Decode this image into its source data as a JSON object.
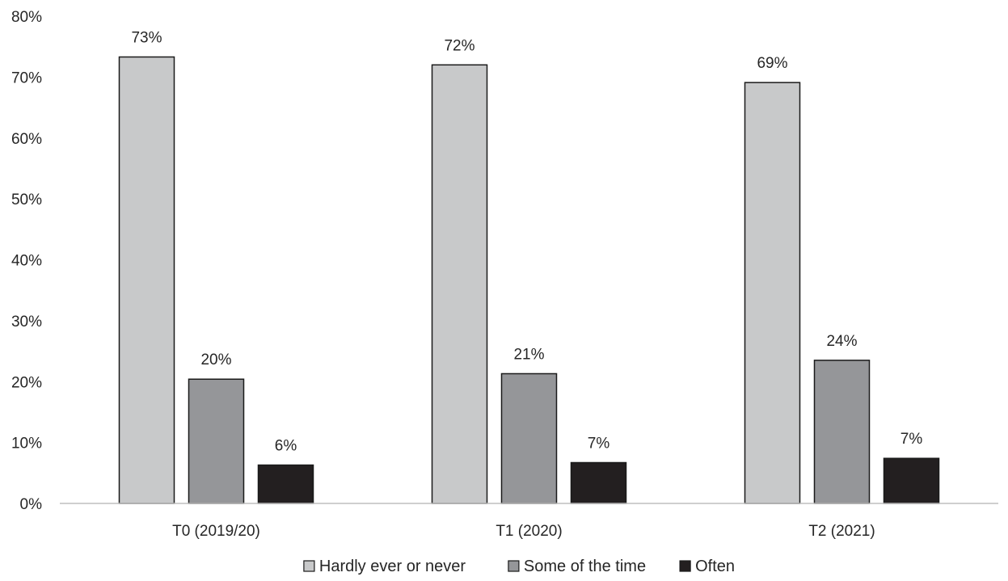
{
  "chart_data": {
    "type": "bar",
    "title": "",
    "xlabel": "",
    "ylabel": "",
    "categories": [
      "T0 (2019/20)",
      "T1 (2020)",
      "T2 (2021)"
    ],
    "series": [
      {
        "name": "Hardly ever or never",
        "color": "#c8c9ca",
        "values": [
          73.3,
          72.0,
          69.1
        ],
        "labels": [
          "73%",
          "72%",
          "69%"
        ]
      },
      {
        "name": "Some of the time",
        "color": "#959699",
        "values": [
          20.4,
          21.3,
          23.5
        ],
        "labels": [
          "20%",
          "21%",
          "24%"
        ]
      },
      {
        "name": "Often",
        "color": "#231f20",
        "values": [
          6.3,
          6.7,
          7.4
        ],
        "labels": [
          "6%",
          "7%",
          "7%"
        ]
      }
    ],
    "ylim": [
      0,
      80
    ],
    "yticks": [
      0,
      10,
      20,
      30,
      40,
      50,
      60,
      70,
      80
    ],
    "ytick_labels": [
      "0%",
      "10%",
      "20%",
      "30%",
      "40%",
      "50%",
      "60%",
      "70%",
      "80%"
    ],
    "grid": false,
    "legend_position": "bottom"
  }
}
